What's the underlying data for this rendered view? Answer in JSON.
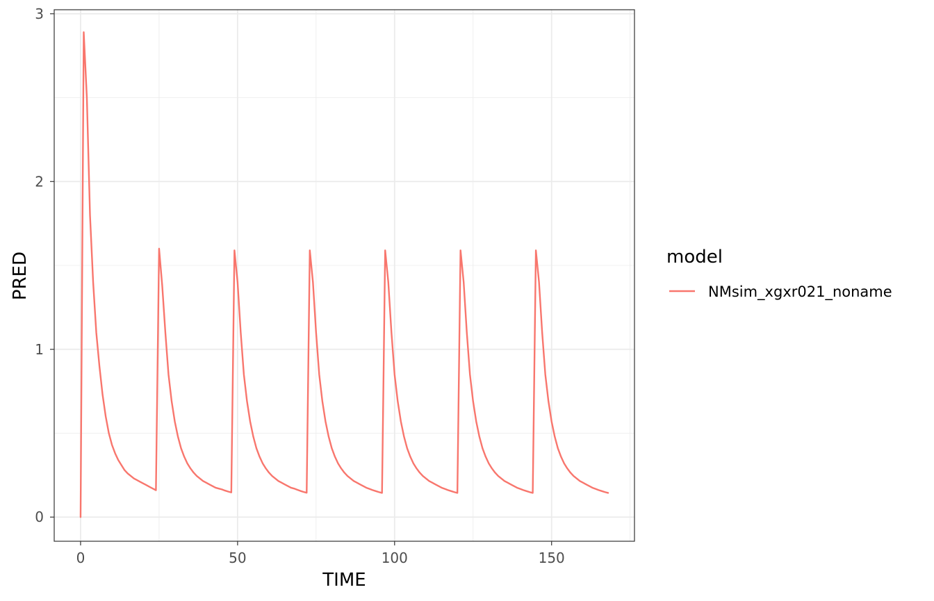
{
  "chart_data": {
    "type": "line",
    "title": "",
    "xlabel": "TIME",
    "ylabel": "PRED",
    "xlim": [
      -8.4,
      176.4
    ],
    "ylim": [
      -0.144,
      3.024
    ],
    "x_ticks": [
      0,
      50,
      100,
      150
    ],
    "x_tick_labels": [
      "0",
      "50",
      "100",
      "150"
    ],
    "y_ticks": [
      0,
      1,
      2,
      3
    ],
    "y_tick_labels": [
      "0",
      "1",
      "2",
      "3"
    ],
    "grid": true,
    "legend": {
      "title": "model",
      "position": "right"
    },
    "colors": {
      "series": "#F8766D",
      "grid": "#ebebeb",
      "panel_border": "#333333"
    },
    "series": [
      {
        "name": "NMsim_xgxr021_noname",
        "x": [
          0,
          1,
          2,
          3,
          4,
          5,
          6,
          7,
          8,
          9,
          10,
          11,
          12,
          13,
          14,
          15,
          16,
          17,
          18,
          19,
          20,
          21,
          22,
          23,
          24,
          25,
          26,
          27,
          28,
          29,
          30,
          31,
          32,
          33,
          34,
          35,
          36,
          37,
          38,
          39,
          40,
          41,
          42,
          43,
          44,
          45,
          46,
          47,
          48,
          49,
          50,
          51,
          52,
          53,
          54,
          55,
          56,
          57,
          58,
          59,
          60,
          61,
          62,
          63,
          64,
          65,
          66,
          67,
          68,
          69,
          70,
          71,
          72,
          73,
          74,
          75,
          76,
          77,
          78,
          79,
          80,
          81,
          82,
          83,
          84,
          85,
          86,
          87,
          88,
          89,
          90,
          91,
          92,
          93,
          94,
          95,
          96,
          97,
          98,
          99,
          100,
          101,
          102,
          103,
          104,
          105,
          106,
          107,
          108,
          109,
          110,
          111,
          112,
          113,
          114,
          115,
          116,
          117,
          118,
          119,
          120,
          121,
          122,
          123,
          124,
          125,
          126,
          127,
          128,
          129,
          130,
          131,
          132,
          133,
          134,
          135,
          136,
          137,
          138,
          139,
          140,
          141,
          142,
          143,
          144,
          145,
          146,
          147,
          148,
          149,
          150,
          151,
          152,
          153,
          154,
          155,
          156,
          157,
          158,
          159,
          160,
          161,
          162,
          163,
          164,
          165,
          166,
          167,
          168
        ],
        "y": [
          0,
          2.89,
          2.5,
          1.8,
          1.4,
          1.1,
          0.9,
          0.73,
          0.6,
          0.5,
          0.43,
          0.38,
          0.34,
          0.31,
          0.28,
          0.26,
          0.245,
          0.23,
          0.22,
          0.21,
          0.2,
          0.19,
          0.18,
          0.17,
          0.16,
          1.6,
          1.38,
          1.1,
          0.85,
          0.69,
          0.57,
          0.48,
          0.41,
          0.36,
          0.32,
          0.29,
          0.265,
          0.245,
          0.23,
          0.215,
          0.205,
          0.195,
          0.185,
          0.175,
          0.17,
          0.165,
          0.158,
          0.152,
          0.147,
          1.59,
          1.4,
          1.1,
          0.85,
          0.69,
          0.57,
          0.48,
          0.41,
          0.36,
          0.32,
          0.29,
          0.265,
          0.245,
          0.23,
          0.215,
          0.205,
          0.195,
          0.185,
          0.175,
          0.17,
          0.163,
          0.156,
          0.15,
          0.145,
          1.59,
          1.4,
          1.1,
          0.85,
          0.69,
          0.57,
          0.48,
          0.41,
          0.36,
          0.32,
          0.29,
          0.265,
          0.245,
          0.23,
          0.215,
          0.205,
          0.195,
          0.185,
          0.175,
          0.168,
          0.161,
          0.155,
          0.149,
          0.144,
          1.59,
          1.4,
          1.1,
          0.85,
          0.69,
          0.57,
          0.48,
          0.41,
          0.36,
          0.32,
          0.29,
          0.265,
          0.245,
          0.23,
          0.215,
          0.205,
          0.195,
          0.185,
          0.175,
          0.168,
          0.161,
          0.155,
          0.149,
          0.144,
          1.59,
          1.4,
          1.1,
          0.85,
          0.69,
          0.57,
          0.48,
          0.41,
          0.36,
          0.32,
          0.29,
          0.265,
          0.245,
          0.23,
          0.215,
          0.205,
          0.195,
          0.185,
          0.175,
          0.168,
          0.161,
          0.155,
          0.149,
          0.144,
          1.59,
          1.4,
          1.1,
          0.85,
          0.69,
          0.57,
          0.48,
          0.41,
          0.36,
          0.32,
          0.29,
          0.265,
          0.245,
          0.23,
          0.215,
          0.205,
          0.195,
          0.185,
          0.175,
          0.168,
          0.161,
          0.155,
          0.149,
          0.144
        ]
      }
    ]
  }
}
